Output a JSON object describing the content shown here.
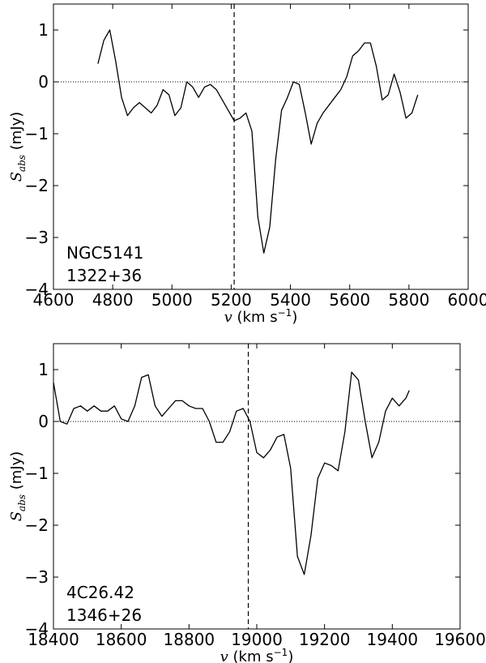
{
  "chart_data": [
    {
      "type": "line",
      "xlabel_var": "v",
      "xlabel_unit": "(km s",
      "xlabel_exp": "−1",
      "xlabel_close": ")",
      "ylabel_var": "S",
      "ylabel_sub": "abs",
      "ylabel_unit": "(mJy)",
      "xlim": [
        4600,
        6000
      ],
      "ylim": [
        -4,
        1.5
      ],
      "xticks": [
        "4600",
        "4800",
        "5000",
        "5200",
        "5400",
        "5600",
        "5800",
        "6000"
      ],
      "yticks": [
        "1",
        "0",
        "−1",
        "−2",
        "−3",
        "−4"
      ],
      "zero_line": 0,
      "vline": 5210,
      "annotations": [
        "NGC5141",
        "1322+36"
      ],
      "series": [
        {
          "x": [
            4750,
            4770,
            4790,
            4810,
            4830,
            4850,
            4870,
            4890,
            4910,
            4930,
            4950,
            4970,
            4990,
            5010,
            5030,
            5050,
            5070,
            5090,
            5110,
            5130,
            5150,
            5170,
            5190,
            5210,
            5230,
            5250,
            5270,
            5290,
            5310,
            5330,
            5350,
            5370,
            5390,
            5410,
            5430,
            5450,
            5470,
            5490,
            5510,
            5530,
            5550,
            5570,
            5590,
            5610,
            5630,
            5650,
            5670,
            5690,
            5710,
            5730,
            5750,
            5770,
            5790,
            5810,
            5830
          ],
          "y": [
            0.35,
            0.8,
            1.0,
            0.4,
            -0.3,
            -0.65,
            -0.5,
            -0.4,
            -0.5,
            -0.6,
            -0.45,
            -0.15,
            -0.25,
            -0.65,
            -0.5,
            0.0,
            -0.1,
            -0.3,
            -0.1,
            -0.05,
            -0.15,
            -0.35,
            -0.55,
            -0.75,
            -0.7,
            -0.6,
            -0.95,
            -2.6,
            -3.3,
            -2.8,
            -1.5,
            -0.55,
            -0.3,
            0.0,
            -0.05,
            -0.6,
            -1.2,
            -0.8,
            -0.6,
            -0.45,
            -0.3,
            -0.15,
            0.1,
            0.5,
            0.6,
            0.75,
            0.75,
            0.3,
            -0.35,
            -0.25,
            0.15,
            -0.2,
            -0.7,
            -0.6,
            -0.25
          ]
        }
      ]
    },
    {
      "type": "line",
      "xlabel_var": "v",
      "xlabel_unit": "(km s",
      "xlabel_exp": "−1",
      "xlabel_close": ")",
      "ylabel_var": "S",
      "ylabel_sub": "abs",
      "ylabel_unit": "(mJy)",
      "xlim": [
        18400,
        19600
      ],
      "ylim": [
        -4,
        1.5
      ],
      "xticks": [
        "18400",
        "18600",
        "18800",
        "19000",
        "19200",
        "19400",
        "19600"
      ],
      "yticks": [
        "1",
        "0",
        "−1",
        "−2",
        "−3",
        "−4"
      ],
      "zero_line": 0,
      "vline": 18975,
      "annotations": [
        "4C26.42",
        "1346+26"
      ],
      "series": [
        {
          "x": [
            18400,
            18420,
            18440,
            18460,
            18480,
            18500,
            18520,
            18540,
            18560,
            18580,
            18600,
            18620,
            18640,
            18660,
            18680,
            18700,
            18720,
            18740,
            18760,
            18780,
            18800,
            18820,
            18840,
            18860,
            18880,
            18900,
            18920,
            18940,
            18960,
            18980,
            19000,
            19020,
            19040,
            19060,
            19080,
            19100,
            19120,
            19140,
            19160,
            19180,
            19200,
            19220,
            19240,
            19260,
            19280,
            19300,
            19320,
            19340,
            19360,
            19380,
            19400,
            19420,
            19440,
            19450
          ],
          "y": [
            0.75,
            0.0,
            -0.05,
            0.25,
            0.3,
            0.2,
            0.3,
            0.2,
            0.2,
            0.3,
            0.05,
            0.0,
            0.3,
            0.85,
            0.9,
            0.3,
            0.1,
            0.25,
            0.4,
            0.4,
            0.3,
            0.25,
            0.25,
            0.0,
            -0.4,
            -0.4,
            -0.2,
            0.2,
            0.25,
            0.0,
            -0.6,
            -0.7,
            -0.55,
            -0.3,
            -0.25,
            -0.9,
            -2.6,
            -2.95,
            -2.2,
            -1.1,
            -0.8,
            -0.85,
            -0.95,
            -0.2,
            0.95,
            0.8,
            0.0,
            -0.7,
            -0.4,
            0.2,
            0.45,
            0.3,
            0.45,
            0.6
          ]
        }
      ]
    }
  ]
}
